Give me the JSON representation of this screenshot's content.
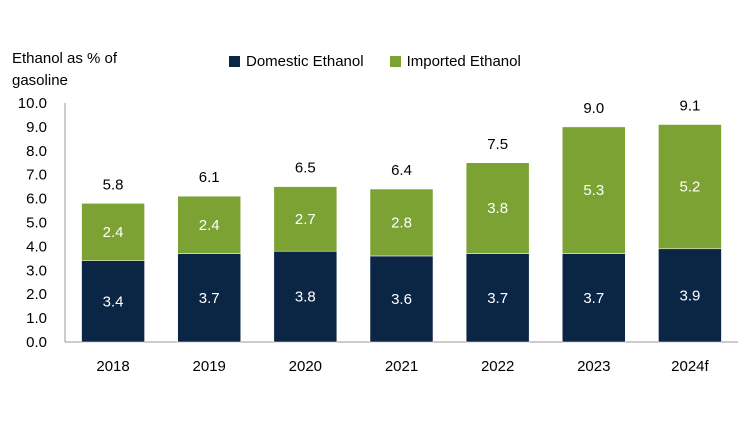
{
  "chart_data": {
    "type": "bar",
    "stacked": true,
    "categories": [
      "2018",
      "2019",
      "2020",
      "2021",
      "2022",
      "2023",
      "2024f"
    ],
    "series": [
      {
        "name": "Domestic Ethanol",
        "color": "#0b2545",
        "values": [
          3.4,
          3.7,
          3.8,
          3.6,
          3.7,
          3.7,
          3.9
        ]
      },
      {
        "name": "Imported Ethanol",
        "color": "#7ca233",
        "values": [
          2.4,
          2.4,
          2.7,
          2.8,
          3.8,
          5.3,
          5.2
        ]
      }
    ],
    "totals": [
      5.8,
      6.1,
      6.5,
      6.4,
      7.5,
      9.0,
      9.1
    ],
    "ylabel": "Ethanol as % of gasoline",
    "ylim": [
      0,
      10
    ],
    "yticks": [
      "0.0",
      "1.0",
      "2.0",
      "3.0",
      "4.0",
      "5.0",
      "6.0",
      "7.0",
      "8.0",
      "9.0",
      "10.0"
    ],
    "legend_position": "top",
    "grid": false
  }
}
